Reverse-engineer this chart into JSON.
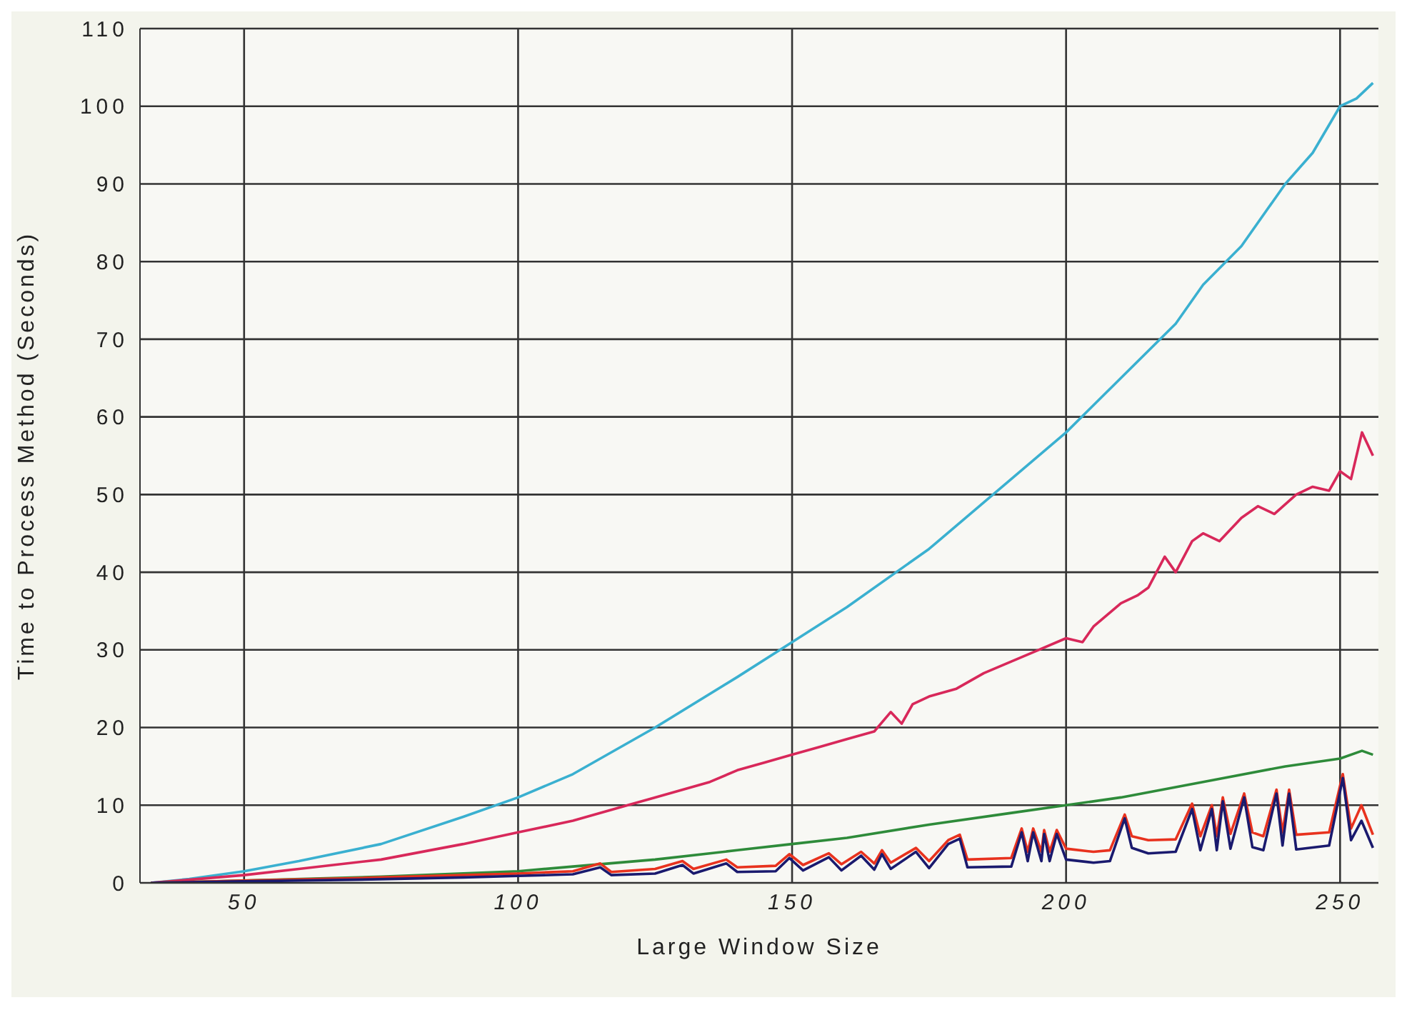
{
  "chart_data": {
    "type": "line",
    "xlabel": "Large Window Size",
    "ylabel": "Time to Process Method (Seconds)",
    "xlim": [
      31,
      257
    ],
    "xticks": [
      50,
      100,
      150,
      200,
      250
    ],
    "ylim": [
      0,
      110
    ],
    "yticks": [
      0,
      10,
      20,
      30,
      40,
      50,
      60,
      70,
      80,
      90,
      100,
      110
    ],
    "grid": true,
    "marker": "none",
    "line_style": "solid",
    "series": [
      {
        "color": "#3ab0d0",
        "x": [
          33,
          40,
          50,
          60,
          75,
          90,
          100,
          110,
          125,
          140,
          150,
          160,
          175,
          190,
          200,
          210,
          220,
          225,
          232,
          240,
          245,
          250,
          253,
          256
        ],
        "values": [
          0,
          0.5,
          1.5,
          2.8,
          5,
          8.5,
          11,
          14,
          20,
          26.5,
          31,
          35.5,
          43,
          52,
          58,
          65,
          72,
          77,
          82,
          90,
          94,
          100,
          101,
          103
        ]
      },
      {
        "color": "#d8285a",
        "x": [
          33,
          40,
          50,
          60,
          75,
          90,
          100,
          110,
          120,
          125,
          135,
          140,
          145,
          150,
          155,
          160,
          165,
          168,
          170,
          172,
          175,
          180,
          185,
          190,
          195,
          200,
          203,
          205,
          210,
          213,
          215,
          218,
          220,
          223,
          225,
          228,
          232,
          235,
          238,
          242,
          245,
          248,
          250,
          252,
          254,
          256
        ],
        "values": [
          0,
          0.4,
          1,
          1.8,
          3,
          5,
          6.5,
          8,
          10,
          11,
          13,
          14.5,
          15.5,
          16.5,
          17.5,
          18.5,
          19.5,
          22,
          20.5,
          23,
          24,
          25,
          27,
          28.5,
          30,
          31.5,
          31,
          33,
          36,
          37,
          38,
          42,
          40,
          44,
          45,
          44,
          47,
          48.5,
          47.5,
          50,
          51,
          50.5,
          53,
          52,
          58,
          55
        ]
      },
      {
        "color": "#2e8b3a",
        "x": [
          33,
          50,
          75,
          100,
          110,
          125,
          140,
          150,
          160,
          175,
          190,
          200,
          210,
          225,
          240,
          250,
          254,
          256
        ],
        "values": [
          0,
          0.3,
          0.8,
          1.5,
          2.1,
          3,
          4.2,
          5,
          5.8,
          7.5,
          9,
          10,
          11,
          13,
          15,
          16,
          17,
          16.5
        ]
      },
      {
        "color": "#e8321e",
        "x": [
          33,
          50,
          70,
          90,
          100,
          110,
          115,
          117,
          125,
          130,
          132,
          138,
          140,
          147,
          149.5,
          152,
          156.7,
          159,
          162.6,
          165,
          166.4,
          168,
          172.6,
          175,
          178.5,
          180.6,
          182,
          190,
          191.9,
          193,
          194,
          195.5,
          196,
          197,
          198.3,
          200,
          205,
          208,
          210.7,
          212,
          215,
          220,
          223,
          224.5,
          226.6,
          227.5,
          228.6,
          230,
          232.5,
          234,
          236,
          238.4,
          239.5,
          240.7,
          242,
          248,
          250.5,
          252,
          253.9,
          256
        ],
        "values": [
          0,
          0.3,
          0.6,
          1,
          1.2,
          1.5,
          2.5,
          1.4,
          1.8,
          2.8,
          1.8,
          3,
          2,
          2.2,
          3.7,
          2.3,
          3.8,
          2.4,
          4,
          2.5,
          4.2,
          2.6,
          4.5,
          2.8,
          5.5,
          6.2,
          3,
          3.2,
          7,
          4,
          7,
          4,
          6.8,
          4,
          6.8,
          4.4,
          4,
          4.2,
          8.8,
          6,
          5.5,
          5.6,
          10.2,
          6,
          10,
          6,
          11,
          6.3,
          11.5,
          6.5,
          6,
          12,
          6.5,
          12,
          6.2,
          6.5,
          14,
          7,
          10,
          6.2
        ]
      },
      {
        "color": "#1a1a6e",
        "x": [
          33,
          50,
          70,
          90,
          100,
          110,
          115,
          117,
          125,
          130,
          132,
          138,
          140,
          147,
          149.5,
          152,
          156.7,
          159,
          162.6,
          165,
          166.4,
          168,
          172.6,
          175,
          178.5,
          180.6,
          182,
          190,
          191.9,
          193,
          194,
          195.5,
          196,
          197,
          198.3,
          200,
          205,
          208,
          210.7,
          212,
          215,
          220,
          223,
          224.5,
          226.6,
          227.5,
          228.6,
          230,
          232.5,
          234,
          236,
          238.4,
          239.5,
          240.7,
          242,
          248,
          250.5,
          252,
          253.9,
          256
        ],
        "values": [
          0,
          0.2,
          0.4,
          0.7,
          0.9,
          1.1,
          2,
          1,
          1.2,
          2.3,
          1.2,
          2.5,
          1.4,
          1.5,
          3.2,
          1.6,
          3.3,
          1.6,
          3.5,
          1.7,
          3.7,
          1.8,
          4,
          1.9,
          5,
          5.7,
          2,
          2.1,
          6.5,
          2.8,
          6.5,
          2.8,
          6.3,
          2.8,
          6.3,
          3,
          2.6,
          2.8,
          8.3,
          4.5,
          3.8,
          4,
          9.5,
          4.2,
          9.5,
          4.2,
          10.5,
          4.4,
          11,
          4.6,
          4.2,
          11.5,
          4.8,
          11.5,
          4.3,
          4.8,
          13.5,
          5.5,
          8,
          4.5
        ]
      }
    ]
  }
}
